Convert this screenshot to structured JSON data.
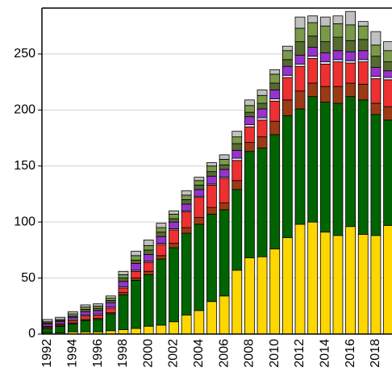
{
  "chart_data": {
    "type": "stacked-bar",
    "categories": [
      "1992",
      null,
      "1994",
      null,
      "1996",
      null,
      "1998",
      null,
      "2000",
      null,
      "2002",
      null,
      "2004",
      null,
      "2006",
      null,
      "2008",
      null,
      "2010",
      null,
      "2012",
      null,
      "2014",
      null,
      "2016",
      null,
      "2018",
      null
    ],
    "series": [
      {
        "color": "#ffd700",
        "values": [
          1,
          1,
          2,
          2,
          2,
          3,
          4,
          5,
          7,
          8,
          11,
          17,
          21,
          29,
          34,
          57,
          68,
          69,
          76,
          86,
          98,
          100,
          91,
          88,
          96,
          89,
          88,
          97
        ]
      },
      {
        "color": "#006400",
        "values": [
          4,
          6,
          7,
          10,
          11,
          15,
          31,
          43,
          46,
          59,
          66,
          73,
          77,
          78,
          77,
          72,
          95,
          97,
          102,
          109,
          103,
          112,
          116,
          118,
          116,
          120,
          108,
          94
        ]
      },
      {
        "color": "#9c3a14",
        "values": [
          1,
          1,
          1,
          1,
          1,
          1,
          2,
          2,
          3,
          3,
          4,
          5,
          6,
          6,
          6,
          8,
          8,
          10,
          12,
          14,
          16,
          12,
          14,
          15,
          12,
          14,
          10,
          12
        ]
      },
      {
        "color": "#ee3030",
        "values": [
          1,
          1,
          2,
          3,
          3,
          4,
          4,
          6,
          8,
          10,
          12,
          14,
          18,
          20,
          22,
          18,
          14,
          15,
          18,
          20,
          22,
          22,
          20,
          22,
          18,
          20,
          22,
          24
        ]
      },
      {
        "color": "#e8f4ff",
        "values": [
          0,
          0,
          1,
          1,
          1,
          1,
          1,
          1,
          1,
          1,
          1,
          1,
          1,
          1,
          1,
          2,
          2,
          2,
          2,
          2,
          2,
          2,
          2,
          2,
          2,
          2,
          2,
          2
        ]
      },
      {
        "color": "#9932cc",
        "values": [
          2,
          2,
          2,
          3,
          3,
          4,
          5,
          6,
          6,
          6,
          6,
          6,
          6,
          7,
          7,
          7,
          7,
          8,
          8,
          8,
          8,
          8,
          8,
          8,
          8,
          8,
          8,
          6
        ]
      },
      {
        "color": "#556b2f",
        "values": [
          1,
          1,
          1,
          2,
          2,
          2,
          3,
          3,
          4,
          4,
          3,
          4,
          4,
          4,
          4,
          6,
          4,
          5,
          6,
          6,
          12,
          10,
          10,
          12,
          10,
          10,
          10,
          8
        ]
      },
      {
        "color": "#7a9a4a",
        "values": [
          1,
          1,
          2,
          2,
          2,
          2,
          3,
          4,
          4,
          4,
          4,
          4,
          4,
          5,
          5,
          6,
          6,
          7,
          8,
          8,
          12,
          12,
          14,
          12,
          14,
          12,
          10,
          10
        ]
      },
      {
        "color": "#c0c0c0",
        "values": [
          2,
          2,
          2,
          2,
          2,
          2,
          3,
          4,
          5,
          4,
          3,
          4,
          3,
          3,
          4,
          5,
          5,
          5,
          4,
          4,
          10,
          6,
          8,
          7,
          12,
          4,
          12,
          8
        ]
      }
    ],
    "ylim": [
      0,
      291
    ],
    "yticks": [
      0,
      50,
      100,
      150,
      200,
      250
    ],
    "grid": true
  }
}
